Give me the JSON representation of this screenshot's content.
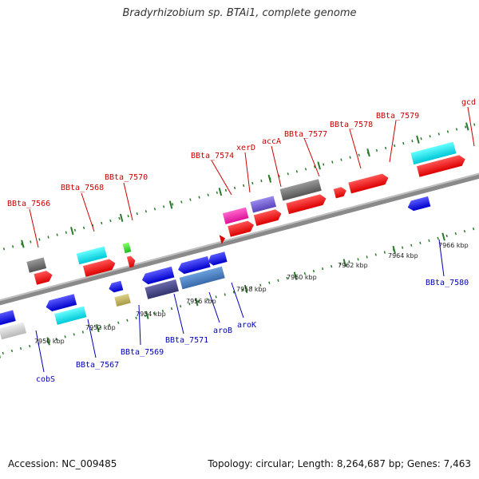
{
  "title": "Bradyrhizobium sp. BTAi1, complete genome",
  "footer": {
    "accession": "Accession: NC_009485",
    "summary": "Topology: circular; Length: 8,264,687 bp; Genes: 7,463"
  },
  "colors": {
    "label_forward": "#cc0000",
    "label_reverse": "#0000bb",
    "backbone": "#8a8a8a",
    "tick_mark": "#2a7a2a"
  },
  "ticks": [
    {
      "label": "7950 kbp"
    },
    {
      "label": "7952 kbp"
    },
    {
      "label": "7954 kbp"
    },
    {
      "label": "7956 kbp"
    },
    {
      "label": "7958 kbp"
    },
    {
      "label": "7960 kbp"
    },
    {
      "label": "7962 kbp"
    },
    {
      "label": "7964 kbp"
    },
    {
      "label": "7966 kbp"
    }
  ],
  "forward_labels": [
    {
      "text": "BBta_7566"
    },
    {
      "text": "BBta_7568"
    },
    {
      "text": "BBta_7570"
    },
    {
      "text": "BBta_7574"
    },
    {
      "text": "xerD"
    },
    {
      "text": "accA"
    },
    {
      "text": "BBta_7577"
    },
    {
      "text": "BBta_7578"
    },
    {
      "text": "BBta_7579"
    },
    {
      "text": "gcd"
    }
  ],
  "reverse_labels": [
    {
      "text": "cobS"
    },
    {
      "text": "BBta_7567"
    },
    {
      "text": "BBta_7569"
    },
    {
      "text": "BBta_7571"
    },
    {
      "text": "aroB"
    },
    {
      "text": "aroK"
    },
    {
      "text": "BBta_7580"
    }
  ]
}
